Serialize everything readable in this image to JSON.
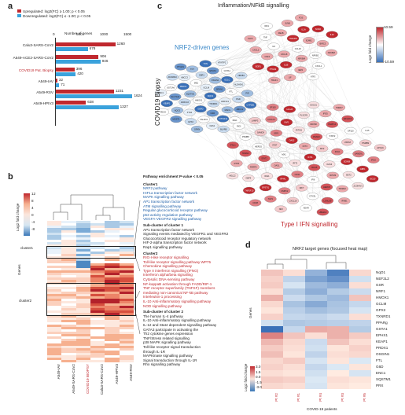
{
  "panels": {
    "a": "a",
    "b": "b",
    "c": "c",
    "d": "d"
  },
  "panel_a": {
    "legend_up": "Upregulated: log2(FC) ≥ 1.00; p < 0.05",
    "legend_down": "Downregulated: log2(FC) ≤ -1.00; p < 0.05",
    "xaxis_title": "Number of genes",
    "chart_data": {
      "type": "bar",
      "categories": [
        "Calu3-SARS-CoV2",
        "A549-ACE2-SARS-CoV2",
        "COVID19 Pat. Biopsy",
        "A549-IAV",
        "A549-RSV",
        "A549-HPIV3"
      ],
      "series": [
        {
          "name": "Upregulated",
          "values": [
            1260,
            906,
            396,
            32,
            1231,
            638
          ]
        },
        {
          "name": "Downregulated",
          "values": [
            678,
            946,
            420,
            71,
            1624,
            1327
          ]
        }
      ],
      "xlim": [
        0,
        1800
      ],
      "ticks": [
        0,
        500,
        1000,
        1500
      ],
      "colors": {
        "up": "#c0282e",
        "down": "#3aa2dc"
      }
    },
    "highlight_label": "COVID19 Pat. Biopsy"
  },
  "panel_b": {
    "legend_title": "Log2 fold change",
    "legend_ticks": [
      "12",
      "8",
      "4",
      "0",
      "-4",
      "-8"
    ],
    "genes_label": "Genes",
    "cluster1": "cluster1",
    "cluster2": "cluster2",
    "columns": [
      "A549-IAV",
      "A549-SARS-CoV2",
      "COVID19 BIOPSY",
      "Calu3-SARS-CoV2",
      "A549-HPIV3",
      "A549-RSV"
    ],
    "pathway_title": "Pathway enrichment P-value < 0.05",
    "cluster_header": "Cluster1",
    "cluster_items": [
      "NRF2 pathway",
      "HIF1a transcription factor network",
      "MAPK signalling pathway",
      "AP1 transcription factor network",
      "ATM signalling pathway",
      "Regular glucocorticoid receptor pathway",
      "p53 activity regulation pathway",
      "VEGFA-VEGFR2 signalling pathway"
    ],
    "sub1_header": "Sub-cluster of cluster 1",
    "sub1_items": [
      "AP1 transcription factor network",
      "Signaling events mediated by VEGFR1 and VEGFR2",
      "Glucocorticoid receptor regulatory network",
      "HIF-2-alpha transcription factor network",
      "Rap1 signalling pathway"
    ],
    "cluster2_header": "Cluster2",
    "cluster2_items": [
      "RIG-I-like receptor signalling",
      "Toll-like receptor signalling pathway WP75",
      "Chemokine signalling pathway",
      "Type II interferon signalling (IFNG)",
      "Interferon alpha/beta signalling",
      "Cytosolic DNA-sensing pathway",
      "NF-kappaB activation through FADD/RIP-1",
      "TNF receptor superfamily (TNFSF) members",
      "mediating non-canonical NF-kB pathway",
      "Interleukin-1 processing",
      "IL-10 Anti-inflammatory signalling pathway",
      "NOD signalling pathway"
    ],
    "sub2_header": "Sub-cluster of cluster 2",
    "sub2_items": [
      "The human IL-4 pathway",
      "IL-10 Anti-inflammatory signalling pathway",
      "IL-12 and Stat4 dependent signalling pathway",
      "GATA3 participate in activating the",
      "Th2 cytokine genes expression",
      "TNF/Stress related signalling",
      "p38 MAPK signalling pathway",
      "Toll-like receptor signal transduction",
      "through IL-1R",
      "MAPKinase signalling pathway",
      "Signal transduction through IL-1R",
      "Rho signalling pathway"
    ]
  },
  "panel_c": {
    "title": "Inflammation/NFkB signalling",
    "nrf2_label": "NRF2-driven genes",
    "ifn_label": "Type I IFN signalling",
    "biopsy_label": "COVID19 Biopsy",
    "legend_title": "Log2 fold change",
    "legend_max": "10.59",
    "legend_min": "-10.59",
    "nodes_top": [
      "CCL20",
      "CXCL8",
      "TNFAIP3",
      "NFKBIA",
      "IL6",
      "ICAM1",
      "IL1B",
      "RELB",
      "NFKB2",
      "CSF2",
      "IL1A",
      "IER3",
      "TNF",
      "BIRC3",
      "PTGS2",
      "JUNB",
      "CXCL1",
      "CXCL2",
      "SOD2",
      "LIF",
      "IRF1",
      "NFKBIZ",
      "EGR1",
      "FOS",
      "ATF3",
      "KLF6",
      "IL32",
      "TRAF1"
    ],
    "nodes_nrf2": [
      "NQO1",
      "HMOX1",
      "GCLM",
      "TXNRD1",
      "SQSTM1",
      "SRXN1",
      "G6PD",
      "ME1",
      "AKR1C1",
      "AKR1C2",
      "OSGIN1",
      "GSR",
      "PRDX1",
      "FTL",
      "FTH1",
      "CBR1",
      "MAFG",
      "SLC7A11",
      "GCLC",
      "TALDO1",
      "ABCC3",
      "PGD",
      "NQO2",
      "EPHX1",
      "CYP4F11",
      "UGT1A6",
      "ALDH3A1",
      "GPX2",
      "TKT",
      "ABCC2",
      "KEAP1",
      "GSTA1",
      "CES1",
      "AKR1B10",
      "PIR",
      "MGST1",
      "TXN",
      "IDH1",
      "ENC1",
      "NR0B1",
      "SRXN",
      "PTGR1",
      "CYP1B1",
      "FECH",
      "HTATIP2",
      "BLVRB"
    ],
    "nodes_ifn": [
      "IFIT1",
      "IFIT2",
      "IFIT3",
      "ISG15",
      "MX1",
      "MX2",
      "OAS1",
      "OAS2",
      "OAS3",
      "OASL",
      "RSAD2",
      "IFI6",
      "IFI27",
      "IFI44",
      "IFI44L",
      "IFITM1",
      "IFITM3",
      "STAT1",
      "STAT2",
      "IRF7",
      "IRF9",
      "DDX58",
      "IFIH1",
      "DDX60",
      "HERC5",
      "HERC6",
      "USP18",
      "CMPK2",
      "XAF1",
      "BST2",
      "PARP9",
      "PARP14",
      "DTX3L",
      "SAMD9",
      "SAMD9L",
      "EPSTI1",
      "PLSCR1",
      "TRIM22",
      "TRIM21",
      "SP110",
      "CXCL10",
      "CXCL11",
      "GBP1",
      "GBP4",
      "IFI35",
      "LGALS9",
      "PSMB8",
      "PSMB9",
      "TAP1",
      "HLA-B",
      "ZC3HAV1",
      "RTP4",
      "EIF2AK2",
      "ADAR",
      "LAMP3",
      "IFI16",
      "TNFSF10",
      "SOCS1",
      "IFNB1",
      "IFNL1",
      "IL15",
      "NMI",
      "SP100",
      "ISG20",
      "HELZ2",
      "TDRD7",
      "UBE2L6",
      "RIGI",
      "APOL6",
      "CD38"
    ]
  },
  "panel_d": {
    "title": "NRF2 target genes (focused heat map)",
    "genes_label": "Genes",
    "xaxis_title": "COVID-19 patients",
    "legend_title": "Log2 fold change",
    "legend_ticks": [
      "3.0",
      "1.5",
      "0.0",
      "-1.5",
      "-3.0"
    ],
    "patients": [
      "Pt #2",
      "Pt #1",
      "Pt #4",
      "Pt #3",
      "Pt #5"
    ],
    "genes": [
      "NqO1",
      "NEF2L2",
      "GSR",
      "NRF1",
      "HMOX1",
      "GCLM",
      "GPX2",
      "TXNRD1",
      "PPARg",
      "GSTA1",
      "EPHX1",
      "KEAP1",
      "PRDX1",
      "OSGIN1",
      "FTL",
      "G6D",
      "ENC1",
      "SQSTM1",
      "PRX"
    ],
    "values": [
      [
        0.6,
        0.2,
        -1.4,
        -2.6,
        0.3
      ],
      [
        0.4,
        -0.6,
        -1.8,
        -2.2,
        -0.3
      ],
      [
        0.5,
        -0.2,
        -1.2,
        -1.5,
        0.2
      ],
      [
        0.2,
        -0.8,
        -1.5,
        -0.8,
        -0.4
      ],
      [
        0.9,
        -0.4,
        -0.9,
        -1.2,
        0.6
      ],
      [
        0.3,
        -1.0,
        -1.6,
        -1.0,
        -0.5
      ],
      [
        0.1,
        -0.7,
        -1.1,
        -0.9,
        -0.2
      ],
      [
        0.4,
        -0.5,
        -0.6,
        -0.4,
        0.2
      ],
      [
        -0.3,
        -0.9,
        -0.8,
        -0.7,
        -0.6
      ],
      [
        -3.0,
        -0.5,
        1.0,
        0.9,
        -0.8
      ],
      [
        1.6,
        0.6,
        0.2,
        0.9,
        0.5
      ],
      [
        0.8,
        0.3,
        -0.4,
        0.6,
        0.2
      ],
      [
        0.5,
        0.2,
        -0.3,
        0.1,
        0.4
      ],
      [
        0.7,
        0.1,
        -0.6,
        0.2,
        0.3
      ],
      [
        0.3,
        0.5,
        -0.2,
        0.1,
        -0.1
      ],
      [
        0.4,
        0.2,
        -0.5,
        -0.1,
        0.1
      ],
      [
        0.2,
        0.1,
        -0.3,
        0.0,
        -0.2
      ],
      [
        0.5,
        0.4,
        -0.1,
        0.2,
        0.1
      ],
      [
        0.3,
        0.2,
        -0.2,
        0.1,
        0.0
      ]
    ]
  }
}
